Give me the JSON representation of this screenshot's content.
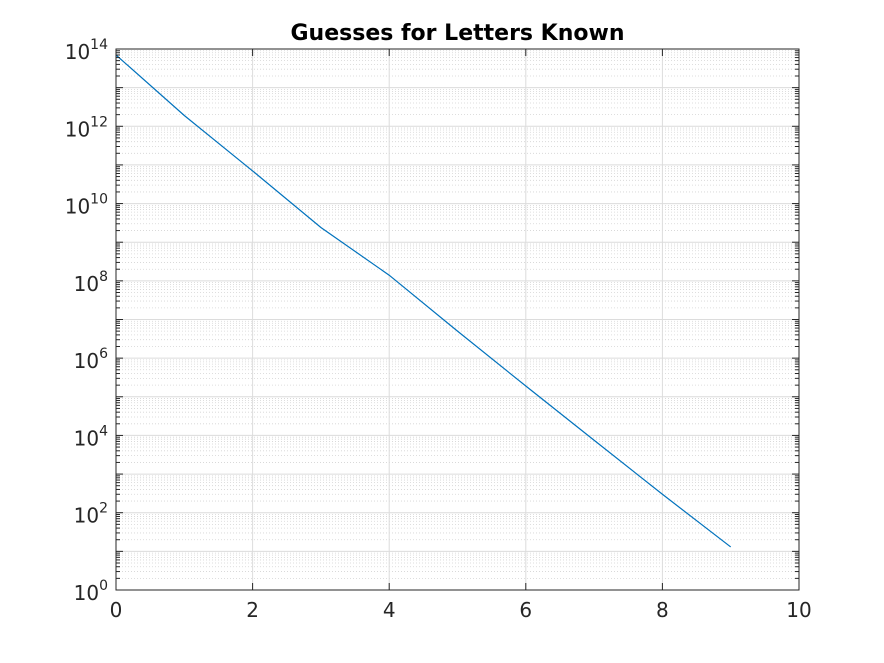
{
  "chart_data": {
    "type": "line",
    "title": "Guesses for Letters Known",
    "xlabel": "",
    "ylabel": "",
    "xlim": [
      0,
      10
    ],
    "ylim": [
      1,
      100000000000000
    ],
    "y_scale": "log",
    "grid": true,
    "minor_grid": true,
    "x_ticks": [
      0,
      2,
      4,
      6,
      8,
      10
    ],
    "x_tick_labels": [
      "0",
      "2",
      "4",
      "6",
      "8",
      "10"
    ],
    "y_ticks": [
      1,
      100,
      10000,
      1000000,
      100000000,
      10000000000,
      1000000000000,
      100000000000000
    ],
    "y_tick_labels": [
      {
        "base": "10",
        "exp": "0"
      },
      {
        "base": "10",
        "exp": "2"
      },
      {
        "base": "10",
        "exp": "4"
      },
      {
        "base": "10",
        "exp": "6"
      },
      {
        "base": "10",
        "exp": "8"
      },
      {
        "base": "10",
        "exp": "10"
      },
      {
        "base": "10",
        "exp": "12"
      },
      {
        "base": "10",
        "exp": "14"
      }
    ],
    "series": [
      {
        "color": "#0072BD",
        "x": [
          0,
          1,
          2,
          3,
          4,
          5,
          6,
          7,
          8,
          9
        ],
        "y": [
          70000000000000,
          1900000000000,
          70000000000,
          2400000000,
          140000000,
          5000000,
          190000,
          7500,
          300,
          13
        ]
      }
    ]
  }
}
